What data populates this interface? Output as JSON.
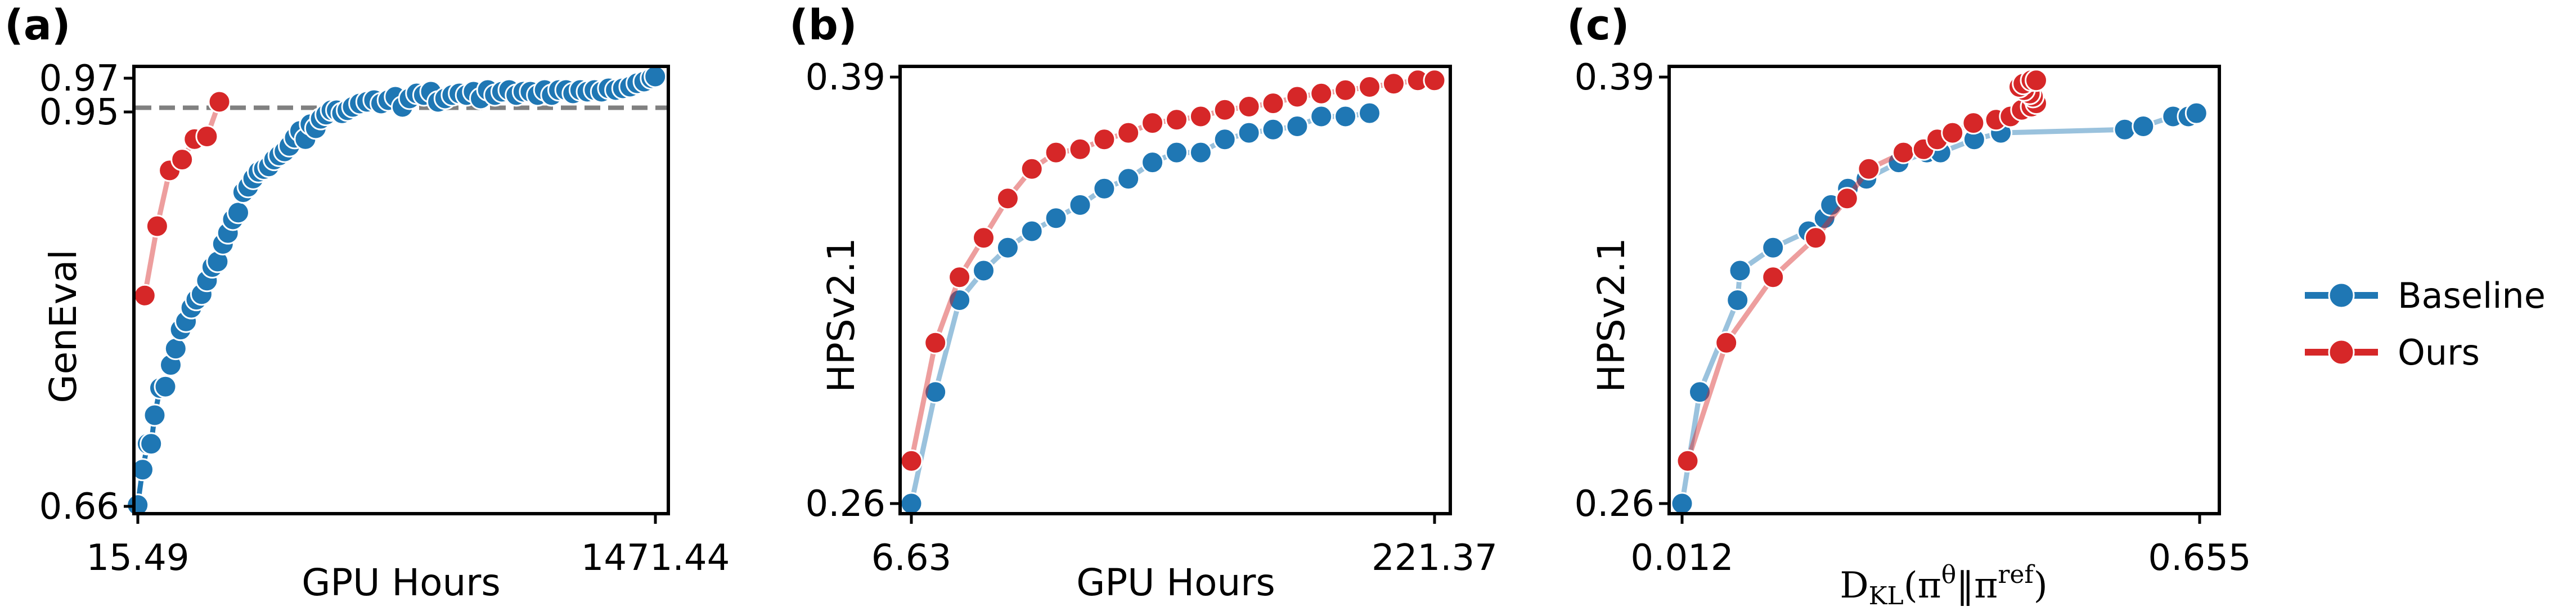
{
  "colors": {
    "baseline": "#1f77b4",
    "ours": "#d62728",
    "reference_line": "#808080"
  },
  "legend": {
    "entries": [
      {
        "name": "Baseline",
        "color": "#1f77b4"
      },
      {
        "name": "Ours",
        "color": "#d62728"
      }
    ],
    "placement": "right"
  },
  "chart_data": [
    {
      "panel": "(a)",
      "type": "line",
      "xlabel": "GPU Hours",
      "ylabel": "GenEval",
      "xlim": [
        15.49,
        1471.44
      ],
      "ylim": [
        0.66,
        0.97
      ],
      "xticks": [
        "15.49",
        "1471.44"
      ],
      "yticks": [
        "0.66",
        "0.95",
        "0.97"
      ],
      "reference_line": {
        "y": 0.9525,
        "style": "dashed"
      },
      "series": [
        {
          "name": "Baseline",
          "x": [
            15,
            29,
            43,
            53,
            63,
            78,
            93,
            108,
            122,
            136,
            151,
            166,
            180,
            195,
            210,
            225,
            240,
            255,
            269,
            283,
            298,
            312,
            326,
            340,
            355,
            370,
            384,
            399,
            413,
            428,
            442,
            457,
            472,
            487,
            501,
            516,
            530,
            545,
            560,
            575,
            590,
            605,
            620,
            640,
            660,
            680,
            700,
            720,
            740,
            760,
            780,
            800,
            820,
            840,
            860,
            880,
            900,
            920,
            940,
            960,
            980,
            1000,
            1020,
            1040,
            1060,
            1080,
            1100,
            1120,
            1140,
            1160,
            1180,
            1200,
            1220,
            1240,
            1260,
            1280,
            1300,
            1320,
            1340,
            1360,
            1380,
            1400,
            1420,
            1440,
            1460,
            1471
          ],
          "y": [
            0.661,
            0.687,
            0.706,
            0.706,
            0.727,
            0.747,
            0.748,
            0.764,
            0.776,
            0.79,
            0.796,
            0.806,
            0.812,
            0.816,
            0.826,
            0.836,
            0.84,
            0.853,
            0.861,
            0.871,
            0.876,
            0.891,
            0.895,
            0.901,
            0.906,
            0.908,
            0.91,
            0.915,
            0.918,
            0.921,
            0.925,
            0.931,
            0.936,
            0.93,
            0.941,
            0.938,
            0.945,
            0.948,
            0.951,
            0.951,
            0.949,
            0.951,
            0.953,
            0.955,
            0.956,
            0.957,
            0.955,
            0.957,
            0.959,
            0.953,
            0.958,
            0.961,
            0.96,
            0.962,
            0.956,
            0.958,
            0.96,
            0.961,
            0.96,
            0.962,
            0.958,
            0.963,
            0.96,
            0.962,
            0.963,
            0.96,
            0.962,
            0.962,
            0.96,
            0.963,
            0.96,
            0.963,
            0.963,
            0.961,
            0.963,
            0.962,
            0.963,
            0.962,
            0.964,
            0.963,
            0.964,
            0.965,
            0.967,
            0.968,
            0.97,
            0.971
          ]
        },
        {
          "name": "Ours",
          "x": [
            35,
            70,
            105,
            140,
            175,
            210,
            245
          ],
          "y": [
            0.815,
            0.866,
            0.907,
            0.915,
            0.93,
            0.932,
            0.956
          ]
        }
      ]
    },
    {
      "panel": "(b)",
      "type": "line",
      "xlabel": "GPU Hours",
      "ylabel": "HPSv2.1",
      "xlim": [
        6.63,
        221.37
      ],
      "ylim": [
        0.26,
        0.39
      ],
      "xticks": [
        "6.63",
        "221.37"
      ],
      "yticks": [
        "0.26",
        "0.39"
      ],
      "series": [
        {
          "name": "Baseline",
          "x": [
            6.63,
            16.5,
            26.4,
            36.3,
            46.2,
            56.1,
            66.0,
            75.9,
            85.8,
            95.7,
            105.6,
            115.5,
            125.4,
            135.3,
            145.2,
            155.1,
            165.0,
            174.9,
            184.8,
            194.7
          ],
          "y": [
            0.26,
            0.294,
            0.322,
            0.331,
            0.338,
            0.343,
            0.347,
            0.351,
            0.356,
            0.359,
            0.364,
            0.367,
            0.367,
            0.371,
            0.373,
            0.374,
            0.375,
            0.378,
            0.378,
            0.379
          ]
        },
        {
          "name": "Ours",
          "x": [
            6.63,
            16.5,
            26.4,
            36.3,
            46.2,
            56.1,
            66.0,
            75.9,
            85.8,
            95.7,
            105.6,
            115.5,
            125.4,
            135.3,
            145.2,
            155.1,
            165.0,
            174.9,
            184.8,
            194.7,
            204.6,
            214.5,
            221.37
          ],
          "y": [
            0.273,
            0.309,
            0.329,
            0.341,
            0.353,
            0.362,
            0.367,
            0.368,
            0.371,
            0.373,
            0.376,
            0.377,
            0.378,
            0.38,
            0.381,
            0.382,
            0.384,
            0.385,
            0.386,
            0.387,
            0.388,
            0.389,
            0.389
          ]
        }
      ]
    },
    {
      "panel": "(c)",
      "type": "line",
      "xlabel": "D_KL(π^θ‖π^ref)",
      "ylabel": "HPSv2.1",
      "xlim": [
        0.012,
        0.655
      ],
      "ylim": [
        0.26,
        0.39
      ],
      "xticks": [
        "0.012",
        "0.655"
      ],
      "yticks": [
        "0.26",
        "0.39"
      ],
      "series": [
        {
          "name": "Baseline",
          "x": [
            0.012,
            0.034,
            0.081,
            0.084,
            0.125,
            0.169,
            0.189,
            0.197,
            0.218,
            0.241,
            0.281,
            0.316,
            0.333,
            0.375,
            0.408,
            0.562,
            0.585,
            0.622,
            0.641,
            0.651
          ],
          "y": [
            0.26,
            0.294,
            0.322,
            0.331,
            0.338,
            0.343,
            0.347,
            0.351,
            0.356,
            0.359,
            0.364,
            0.367,
            0.367,
            0.371,
            0.373,
            0.374,
            0.375,
            0.378,
            0.378,
            0.379
          ]
        },
        {
          "name": "Ours",
          "x": [
            0.019,
            0.067,
            0.125,
            0.178,
            0.217,
            0.244,
            0.287,
            0.312,
            0.329,
            0.348,
            0.374,
            0.402,
            0.42,
            0.434,
            0.446,
            0.452,
            0.448,
            0.444,
            0.437,
            0.431,
            0.436,
            0.446,
            0.452
          ],
          "y": [
            0.273,
            0.309,
            0.329,
            0.341,
            0.353,
            0.362,
            0.367,
            0.368,
            0.371,
            0.373,
            0.376,
            0.377,
            0.378,
            0.38,
            0.381,
            0.382,
            0.384,
            0.385,
            0.386,
            0.387,
            0.388,
            0.389,
            0.389
          ]
        }
      ]
    }
  ]
}
